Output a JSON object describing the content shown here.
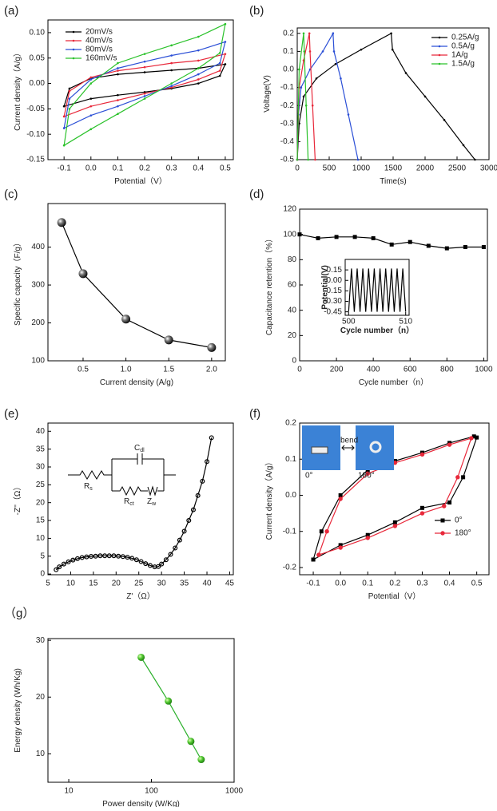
{
  "chart_data": [
    {
      "type": "line",
      "label": "(a)",
      "xlabel": "Potential（V）",
      "ylabel": "Current density（A/g）",
      "xlim": [
        -0.16,
        0.53
      ],
      "ylim": [
        -0.15,
        0.125
      ],
      "xticks": [
        -0.1,
        {
          "value": 0,
          "label": "0.0"
        },
        0.1,
        0.2,
        0.3,
        0.4,
        0.5
      ],
      "yticks": [
        {
          "value": -0.15,
          "label": "-0.15"
        },
        {
          "value": -0.1,
          "label": "-0.10"
        },
        {
          "value": -0.05,
          "label": "-0.05"
        },
        {
          "value": 0,
          "label": "0.00"
        },
        {
          "value": 0.05,
          "label": "0.05"
        },
        {
          "value": 0.1,
          "label": "0.10"
        }
      ],
      "legend": "upper left",
      "series": [
        {
          "name": "20mV/s",
          "color": "#000000",
          "marker": "dot",
          "x": [
            -0.1,
            -0.08,
            0,
            0.1,
            0.2,
            0.3,
            0.4,
            0.5,
            0.48,
            0.4,
            0.3,
            0.2,
            0.1,
            0,
            -0.1
          ],
          "values": [
            -0.045,
            -0.01,
            0.01,
            0.018,
            0.022,
            0.026,
            0.03,
            0.038,
            0.015,
            0,
            -0.01,
            -0.017,
            -0.023,
            -0.03,
            -0.045
          ]
        },
        {
          "name": "40mV/s",
          "color": "#e8283a",
          "marker": "dot",
          "x": [
            -0.1,
            -0.08,
            0,
            0.1,
            0.2,
            0.3,
            0.4,
            0.5,
            0.48,
            0.4,
            0.3,
            0.2,
            0.1,
            0,
            -0.1
          ],
          "values": [
            -0.065,
            -0.015,
            0.012,
            0.025,
            0.032,
            0.04,
            0.045,
            0.058,
            0.025,
            0.008,
            -0.008,
            -0.02,
            -0.033,
            -0.045,
            -0.065
          ]
        },
        {
          "name": "80mV/s",
          "color": "#2b4fd6",
          "marker": "dot",
          "x": [
            -0.1,
            -0.08,
            0,
            0.1,
            0.2,
            0.3,
            0.4,
            0.5,
            0.48,
            0.4,
            0.3,
            0.2,
            0.1,
            0,
            -0.1
          ],
          "values": [
            -0.088,
            -0.03,
            0.008,
            0.03,
            0.043,
            0.055,
            0.065,
            0.082,
            0.04,
            0.018,
            -0.005,
            -0.025,
            -0.045,
            -0.063,
            -0.088
          ]
        },
        {
          "name": "160mV/s",
          "color": "#2bc22b",
          "marker": "dot",
          "x": [
            -0.1,
            -0.08,
            0,
            0.1,
            0.2,
            0.3,
            0.4,
            0.5,
            0.48,
            0.4,
            0.3,
            0.2,
            0.1,
            0,
            -0.1
          ],
          "values": [
            -0.122,
            -0.05,
            0,
            0.04,
            0.058,
            0.075,
            0.092,
            0.117,
            0.06,
            0.03,
            0,
            -0.03,
            -0.06,
            -0.09,
            -0.122
          ]
        }
      ]
    },
    {
      "type": "line",
      "label": "(b)",
      "xlabel": "Time(s)",
      "ylabel": "Voltage(V)",
      "xlim": [
        0,
        3000
      ],
      "ylim": [
        -0.5,
        0.23
      ],
      "xticks": [
        0,
        500,
        1000,
        1500,
        2000,
        2500,
        3000
      ],
      "yticks": [
        -0.5,
        -0.4,
        -0.3,
        -0.2,
        -0.1,
        {
          "value": 0,
          "label": "0.0"
        },
        0.1,
        0.2
      ],
      "legend": "upper right",
      "series": [
        {
          "name": "0.25A/g",
          "color": "#000000",
          "marker": "dot",
          "x": [
            0,
            30,
            100,
            300,
            600,
            1000,
            1470,
            1490,
            1700,
            2000,
            2300,
            2600,
            2780
          ],
          "values": [
            -0.5,
            -0.3,
            -0.15,
            -0.05,
            0.03,
            0.11,
            0.2,
            0.11,
            -0.02,
            -0.15,
            -0.28,
            -0.42,
            -0.5
          ]
        },
        {
          "name": "0.5A/g",
          "color": "#2b4fd6",
          "marker": "dot",
          "x": [
            0,
            20,
            60,
            200,
            400,
            560,
            575,
            680,
            800,
            950
          ],
          "values": [
            -0.5,
            -0.25,
            -0.1,
            0,
            0.1,
            0.2,
            0.1,
            -0.05,
            -0.25,
            -0.5
          ]
        },
        {
          "name": "1A/g",
          "color": "#e8283a",
          "marker": "dot",
          "x": [
            0,
            30,
            100,
            190,
            200,
            240,
            280
          ],
          "values": [
            -0.5,
            -0.1,
            0.05,
            0.2,
            0.1,
            -0.2,
            -0.5
          ]
        },
        {
          "name": "1.5A/g",
          "color": "#2bc22b",
          "marker": "dot",
          "x": [
            0,
            30,
            100,
            110,
            140,
            170
          ],
          "values": [
            -0.5,
            0,
            0.2,
            0.1,
            -0.2,
            -0.5
          ]
        }
      ]
    },
    {
      "type": "line",
      "label": "(c)",
      "xlabel": "Current density (A/g)",
      "ylabel": "Specific capacity（F/g）",
      "xlim": [
        0.09,
        2.16
      ],
      "ylim": [
        100,
        515
      ],
      "xticks": [
        0.5,
        {
          "value": 1,
          "label": "1.0"
        },
        1.5,
        {
          "value": 2,
          "label": "2.0"
        }
      ],
      "yticks": [
        100,
        200,
        300,
        400
      ],
      "series": [
        {
          "color": "#000000",
          "marker": "sphere",
          "x": [
            0.25,
            0.5,
            1,
            1.5,
            2
          ],
          "values": [
            465,
            330,
            210,
            155,
            135
          ]
        }
      ]
    },
    {
      "type": "line",
      "label": "(d)",
      "xlabel": "Cycle number（n）",
      "ylabel": "Capacitance retention（%）",
      "xlim": [
        0,
        1020
      ],
      "ylim": [
        0,
        120
      ],
      "xticks": [
        0,
        200,
        400,
        600,
        800,
        1000
      ],
      "yticks": [
        0,
        20,
        40,
        60,
        80,
        100,
        120
      ],
      "series": [
        {
          "color": "#000000",
          "marker": "square",
          "x": [
            0,
            100,
            200,
            300,
            400,
            500,
            600,
            700,
            800,
            900,
            1000
          ],
          "values": [
            100,
            97,
            98,
            98,
            97,
            92,
            94,
            91,
            89,
            90,
            90
          ]
        }
      ],
      "inset": {
        "type": "line",
        "xlabel": "Cycle number（n）",
        "ylabel": "Potential(V)",
        "xlim": [
          499.4,
          510.6
        ],
        "ylim": [
          -0.5,
          0.3
        ],
        "xticks": [
          500,
          510
        ],
        "yticks": [
          {
            "value": -0.45,
            "label": "-0.45"
          },
          {
            "value": -0.3,
            "label": "-0.30"
          },
          {
            "value": -0.15,
            "label": "-0.15"
          },
          {
            "value": 0,
            "label": "0.00"
          },
          {
            "value": 0.15,
            "label": "0.15"
          }
        ],
        "series": [
          {
            "color": "#000000",
            "x": [
              500,
              500.5,
              501,
              501.5,
              502,
              502.5,
              503,
              503.5,
              504,
              504.5,
              505,
              505.5,
              506,
              506.5,
              507,
              507.5,
              508,
              508.5,
              509,
              509.5,
              510
            ],
            "values": [
              -0.45,
              0.17,
              -0.45,
              0.17,
              -0.45,
              0.17,
              -0.45,
              0.17,
              -0.45,
              0.17,
              -0.45,
              0.17,
              -0.45,
              0.17,
              -0.45,
              0.17,
              -0.45,
              0.17,
              -0.45,
              0.17,
              -0.45
            ]
          }
        ]
      }
    },
    {
      "type": "line",
      "label": "(e)",
      "xlabel": "Z'（Ω）",
      "ylabel": "-Z''（Ω）",
      "xlim": [
        5,
        45.8
      ],
      "ylim": [
        -0.2,
        42.3
      ],
      "xticks": [
        5,
        10,
        15,
        20,
        25,
        30,
        35,
        40,
        45
      ],
      "yticks": [
        0,
        5,
        10,
        15,
        20,
        25,
        30,
        35,
        40
      ],
      "series": [
        {
          "color": "#000000",
          "marker": "ring",
          "x": [
            6.8,
            7.5,
            8.5,
            9.5,
            10.5,
            11.5,
            12.5,
            13.5,
            14.5,
            15.5,
            16.5,
            17.5,
            18.5,
            19.5,
            20.5,
            21.5,
            22.5,
            23.5,
            24.5,
            25.5,
            26.5,
            27.5,
            28.5,
            29.3,
            30,
            31,
            32,
            33,
            34,
            35,
            36,
            37,
            38,
            39,
            40,
            41
          ],
          "values": [
            1.2,
            2,
            2.8,
            3.4,
            3.9,
            4.3,
            4.6,
            4.8,
            4.95,
            5,
            5.1,
            5.1,
            5.1,
            5.1,
            5,
            4.9,
            4.7,
            4.4,
            4,
            3.5,
            2.9,
            2.4,
            2,
            2.1,
            2.8,
            4,
            5.5,
            7.3,
            9.5,
            12,
            15,
            18,
            22,
            26,
            31.5,
            38.2
          ]
        }
      ],
      "circuit": [
        {
          "main": "C",
          "sub": "dl"
        },
        {
          "main": "R",
          "sub": "s"
        },
        {
          "main": "R",
          "sub": "ct"
        },
        {
          "main": "Z",
          "sub": "w"
        }
      ]
    },
    {
      "type": "line",
      "label": "(f)",
      "xlabel": "Potential（V）",
      "ylabel": "Current density（A/g）",
      "xlim": [
        -0.15,
        0.545
      ],
      "ylim": [
        -0.22,
        0.2
      ],
      "xticks": [
        -0.1,
        {
          "value": 0,
          "label": "0.0"
        },
        0.1,
        0.2,
        0.3,
        0.4,
        0.5
      ],
      "yticks": [
        -0.2,
        -0.1,
        {
          "value": 0,
          "label": "0.0"
        },
        0.1,
        0.2
      ],
      "legend": "lower right",
      "photos": [
        "0°",
        "bend",
        "180°"
      ],
      "series": [
        {
          "name": "0°",
          "color": "#000000",
          "marker": "square",
          "x": [
            -0.1,
            -0.07,
            0,
            0.1,
            0.2,
            0.3,
            0.4,
            0.49,
            0.5,
            0.45,
            0.4,
            0.3,
            0.2,
            0.1,
            0,
            -0.1
          ],
          "values": [
            -0.178,
            -0.1,
            0,
            0.07,
            0.095,
            0.118,
            0.145,
            0.163,
            0.16,
            0.05,
            -0.02,
            -0.035,
            -0.075,
            -0.11,
            -0.138,
            -0.178
          ]
        },
        {
          "name": "180°",
          "color": "#e8283a",
          "marker": "circle",
          "x": [
            -0.08,
            -0.05,
            0,
            0.1,
            0.2,
            0.3,
            0.4,
            0.48,
            0.43,
            0.38,
            0.3,
            0.2,
            0.1,
            0,
            -0.08
          ],
          "values": [
            -0.165,
            -0.1,
            -0.01,
            0.06,
            0.09,
            0.113,
            0.14,
            0.158,
            0.05,
            -0.03,
            -0.05,
            -0.085,
            -0.118,
            -0.145,
            -0.165
          ]
        }
      ]
    },
    {
      "type": "line",
      "label": "（g）",
      "xlabel": "Power density (W/Kg)",
      "ylabel": "Energy density (Wh/Kg)",
      "xlog": true,
      "xlim": [
        5.6,
        1000
      ],
      "ylim": [
        5,
        30.3
      ],
      "xticks": [
        10,
        100,
        1000
      ],
      "yticks": [
        10,
        20,
        30
      ],
      "series": [
        {
          "color": "#2bb02b",
          "marker": "green",
          "x": [
            75,
            160,
            300,
            400
          ],
          "values": [
            27,
            19.3,
            12.2,
            9
          ]
        }
      ]
    }
  ]
}
